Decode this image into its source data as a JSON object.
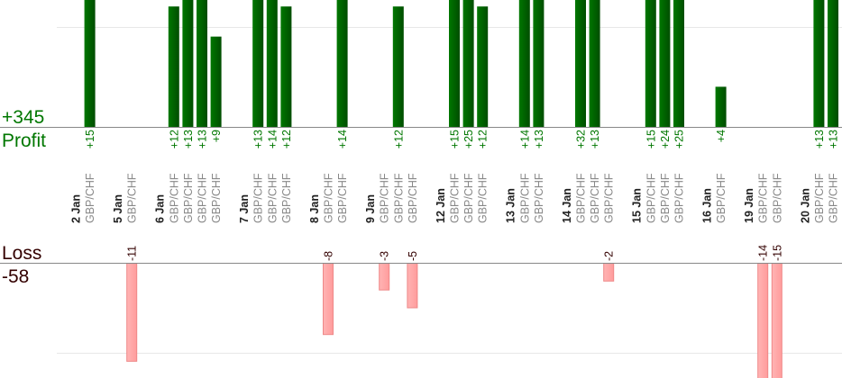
{
  "chart_data": {
    "type": "bar",
    "title": "",
    "profit_label": "Profit",
    "profit_total": "+345",
    "loss_label": "Loss",
    "loss_total": "-58",
    "colors": {
      "profit": "#006600",
      "loss": "#ffaaaa",
      "loss_border": "#ee8888",
      "profit_text": "#007700",
      "loss_text": "#330000",
      "pair_text": "#888888"
    },
    "days": [
      {
        "date": "2 Jan",
        "trades": [
          {
            "pair": "GBP/CHF",
            "value": 15,
            "label": "+15"
          }
        ]
      },
      {
        "date": "5 Jan",
        "trades": [
          {
            "pair": "GBP/CHF",
            "value": -11,
            "label": "-11"
          }
        ]
      },
      {
        "date": "6 Jan",
        "trades": [
          {
            "pair": "GBP/CHF",
            "value": 12,
            "label": "+12"
          },
          {
            "pair": "GBP/CHF",
            "value": 13,
            "label": "+13"
          },
          {
            "pair": "GBP/CHF",
            "value": 13,
            "label": "+13"
          },
          {
            "pair": "GBP/CHF",
            "value": 9,
            "label": "+9"
          }
        ]
      },
      {
        "date": "7 Jan",
        "trades": [
          {
            "pair": "GBP/CHF",
            "value": 13,
            "label": "+13"
          },
          {
            "pair": "GBP/CHF",
            "value": 14,
            "label": "+14"
          },
          {
            "pair": "GBP/CHF",
            "value": 12,
            "label": "+12"
          }
        ]
      },
      {
        "date": "8 Jan",
        "trades": [
          {
            "pair": "GBP/CHF",
            "value": -8,
            "label": "-8"
          },
          {
            "pair": "GBP/CHF",
            "value": 14,
            "label": "+14"
          }
        ]
      },
      {
        "date": "9 Jan",
        "trades": [
          {
            "pair": "GBP/CHF",
            "value": -3,
            "label": "-3"
          },
          {
            "pair": "GBP/CHF",
            "value": 12,
            "label": "+12"
          },
          {
            "pair": "GBP/CHF",
            "value": -5,
            "label": "-5"
          }
        ]
      },
      {
        "date": "12 Jan",
        "trades": [
          {
            "pair": "GBP/CHF",
            "value": 15,
            "label": "+15"
          },
          {
            "pair": "GBP/CHF",
            "value": 25,
            "label": "+25"
          },
          {
            "pair": "GBP/CHF",
            "value": 12,
            "label": "+12"
          }
        ]
      },
      {
        "date": "13 Jan",
        "trades": [
          {
            "pair": "GBP/CHF",
            "value": 14,
            "label": "+14"
          },
          {
            "pair": "GBP/CHF",
            "value": 13,
            "label": "+13"
          }
        ]
      },
      {
        "date": "14 Jan",
        "trades": [
          {
            "pair": "GBP/CHF",
            "value": 32,
            "label": "+32"
          },
          {
            "pair": "GBP/CHF",
            "value": 13,
            "label": "+13"
          },
          {
            "pair": "GBP/CHF",
            "value": -2,
            "label": "-2"
          }
        ]
      },
      {
        "date": "15 Jan",
        "trades": [
          {
            "pair": "GBP/CHF",
            "value": 15,
            "label": "+15"
          },
          {
            "pair": "GBP/CHF",
            "value": 24,
            "label": "+24"
          },
          {
            "pair": "GBP/CHF",
            "value": 25,
            "label": "+25"
          }
        ]
      },
      {
        "date": "16 Jan",
        "trades": [
          {
            "pair": "GBP/CHF",
            "value": 4,
            "label": "+4"
          }
        ]
      },
      {
        "date": "19 Jan",
        "trades": [
          {
            "pair": "GBP/CHF",
            "value": -14,
            "label": "-14"
          },
          {
            "pair": "GBP/CHF",
            "value": -15,
            "label": "-15"
          }
        ]
      },
      {
        "date": "20 Jan",
        "trades": [
          {
            "pair": "GBP/CHF",
            "value": 13,
            "label": "+13"
          },
          {
            "pair": "GBP/CHF",
            "value": 13,
            "label": "+13"
          }
        ]
      }
    ]
  }
}
